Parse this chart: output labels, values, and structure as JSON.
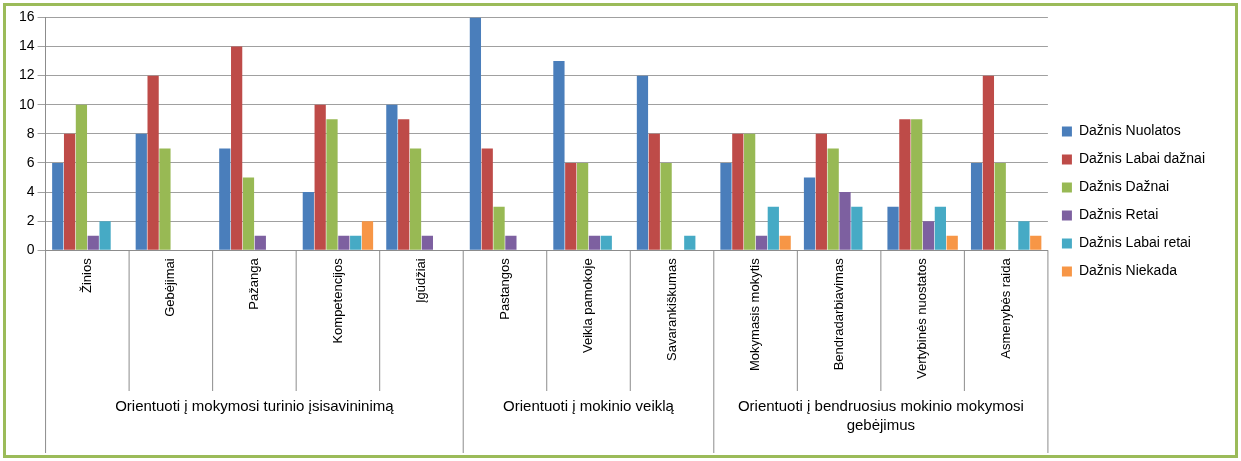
{
  "chart_data": {
    "type": "bar",
    "categories": [
      "Žinios",
      "Gebėjimai",
      "Pažanga",
      "Kompetencijos",
      "Įgūdžiai",
      "Pastangos",
      "Veikla pamokoje",
      "Savarankiškumas",
      "Mokymasis mokytis",
      "Bendradarbiavimas",
      "Vertybinės nuostatos",
      "Asmenybės raida"
    ],
    "series": [
      {
        "name": "Dažnis Nuolatos",
        "color": "#4a7ebb",
        "values": [
          6,
          8,
          7,
          4,
          10,
          16,
          13,
          12,
          6,
          5,
          3,
          6
        ]
      },
      {
        "name": "Dažnis Labai dažnai",
        "color": "#be4b48",
        "values": [
          8,
          12,
          14,
          10,
          9,
          7,
          6,
          8,
          8,
          8,
          9,
          12
        ]
      },
      {
        "name": "Dažnis Dažnai",
        "color": "#98b954",
        "values": [
          10,
          7,
          5,
          9,
          7,
          3,
          6,
          6,
          8,
          7,
          9,
          6
        ]
      },
      {
        "name": "Dažnis Retai",
        "color": "#7d60a0",
        "values": [
          1,
          0,
          1,
          1,
          1,
          1,
          1,
          0,
          1,
          4,
          2,
          0
        ]
      },
      {
        "name": "Dažnis Labai retai",
        "color": "#46aac5",
        "values": [
          2,
          0,
          0,
          1,
          0,
          0,
          1,
          1,
          3,
          3,
          3,
          2
        ]
      },
      {
        "name": "Dažnis Niekada",
        "color": "#f79646",
        "values": [
          0,
          0,
          0,
          2,
          0,
          0,
          0,
          0,
          1,
          0,
          1,
          1
        ]
      }
    ],
    "ylim": [
      0,
      16
    ],
    "yticks": [
      0,
      2,
      4,
      6,
      8,
      10,
      12,
      14,
      16
    ],
    "grid": "y",
    "legend": "right",
    "annotations": [
      "Orientuoti į mokymosi turinio įsisavininimą",
      "Orientuoti į mokinio veiklą",
      "Orientuoti į bendruosius mokinio mokymosi gebėjimus"
    ]
  }
}
